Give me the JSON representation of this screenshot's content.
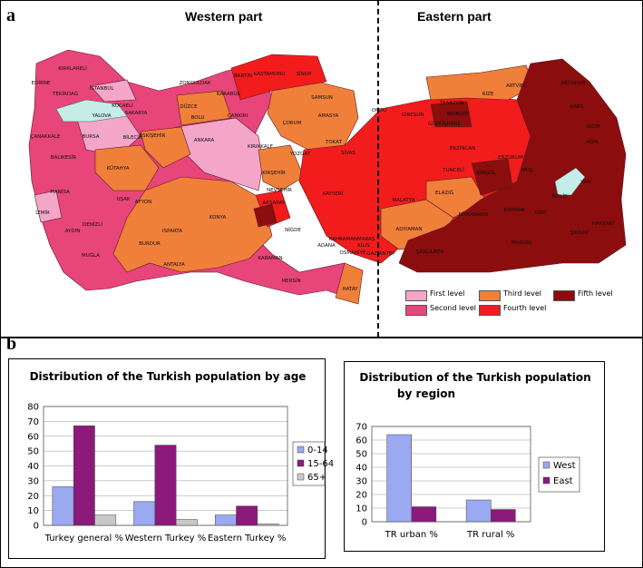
{
  "panel_a": {
    "letter": "a",
    "west_title": "Western part",
    "east_title": "Eastern part",
    "legend": [
      {
        "label": "First level",
        "color": "#f4a6c9"
      },
      {
        "label": "Second level",
        "color": "#e8457a"
      },
      {
        "label": "Third level",
        "color": "#f07f3a"
      },
      {
        "label": "Fourth level",
        "color": "#f21c1c"
      },
      {
        "label": "Fifth level",
        "color": "#8b0d0d"
      }
    ],
    "provinces": [
      "KIRKLARELİ",
      "EDİRNE",
      "TEKİRDAĞ",
      "İSTANBUL",
      "KOCAELİ",
      "SAKARYA",
      "YALOVA",
      "ZONGULDAK",
      "BARTIN",
      "KASTAMONU",
      "SİNOP",
      "KARABÜK",
      "DÜZCE",
      "BOLU",
      "ÇANKIRI",
      "ÇORUM",
      "SAMSUN",
      "AMASYA",
      "TOKAT",
      "ORDU",
      "GİRESUN",
      "TRABZON",
      "RİZE",
      "ARTVİN",
      "ARDAHAN",
      "KARS",
      "IĞDIR",
      "AĞRI",
      "ERZURUM",
      "BAYBURT",
      "GÜMÜŞHANE",
      "ERZİNCAN",
      "TUNCELİ",
      "BİNGÖL",
      "MUŞ",
      "BİTLİS",
      "VAN",
      "HAKKARİ",
      "ŞIRNAK",
      "SİİRT",
      "BATMAN",
      "MARDİN",
      "ŞANLIURFA",
      "DİYARBAKIR",
      "ELAZIĞ",
      "MALATYA",
      "ADIYAMAN",
      "GAZİANTEP",
      "KİLİS",
      "OSMANİYE",
      "HATAY",
      "ADANA",
      "MERSİN",
      "KARAMAN",
      "KONYA",
      "ANTALYA",
      "BURDUR",
      "ISPARTA",
      "AFYON",
      "DENİZLİ",
      "MUĞLA",
      "AYDIN",
      "İZMİR",
      "MANİSA",
      "UŞAK",
      "KÜTAHYA",
      "BALIKESİR",
      "ÇANAKKALE",
      "BURSA",
      "BİLECİK",
      "ESKİŞEHİR",
      "ANKARA",
      "KIRIKKALE",
      "KIRŞEHİR",
      "NEVŞEHİR",
      "AKSARAY",
      "NİĞDE",
      "KAYSERİ",
      "YOZGAT",
      "SİVAS",
      "KAHRAMANMARAŞ"
    ]
  },
  "panel_b": {
    "letter": "b",
    "charts": [
      {
        "type": "bar",
        "title": "Distribution of the Turkish population by age",
        "categories": [
          "Turkey general %",
          "Western Turkey %",
          "Eastern Turkey %"
        ],
        "series": [
          {
            "name": "0-14",
            "values": [
              26,
              16,
              7
            ],
            "color": "#9aa9f0"
          },
          {
            "name": "15-64",
            "values": [
              67,
              54,
              13
            ],
            "color": "#8b1a7a"
          },
          {
            "name": "65+",
            "values": [
              7,
              4,
              1
            ],
            "color": "#c8c8c8"
          }
        ],
        "ylim": [
          0,
          80
        ],
        "yticks": [
          0,
          10,
          20,
          30,
          40,
          50,
          60,
          70,
          80
        ],
        "grid": true,
        "legend_position": "right"
      },
      {
        "type": "bar",
        "title_line1": "Distribution of the Turkish population",
        "title_line2": "by region",
        "categories": [
          "TR urban %",
          "TR rural %"
        ],
        "series": [
          {
            "name": "West",
            "values": [
              64,
              16
            ],
            "color": "#9aa9f0"
          },
          {
            "name": "East",
            "values": [
              11,
              9
            ],
            "color": "#8b1a7a"
          }
        ],
        "ylim": [
          0,
          70
        ],
        "yticks": [
          0,
          10,
          20,
          30,
          40,
          50,
          60,
          70
        ],
        "grid": true,
        "legend_position": "right"
      }
    ]
  }
}
